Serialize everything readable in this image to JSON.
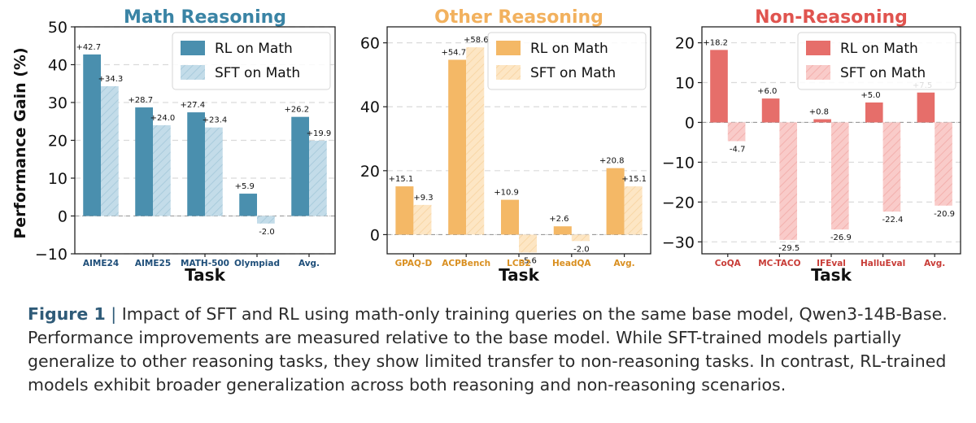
{
  "figure_caption": {
    "label": "Figure 1",
    "separator": "|",
    "text": "Impact of SFT and RL using math-only training queries on the same base model, Qwen3-14B-Base. Performance improvements are measured relative to the base model. While SFT-trained models partially generalize to other reasoning tasks, they show limited transfer to non-reasoning tasks. In contrast, RL-trained models exhibit broader generalization across both reasoning and non-reasoning scenarios."
  },
  "shared_ylabel": "Performance Gain (%)",
  "chart_data": [
    {
      "type": "bar",
      "title": "Math Reasoning",
      "title_color": "#3a84a5",
      "xlabel": "Task",
      "tick_label_color": "#1e4e79",
      "categories": [
        "AIME24",
        "AIME25",
        "MATH-500",
        "Olympiad",
        "Avg."
      ],
      "ylim": [
        -10,
        50
      ],
      "yticks": [
        -10,
        0,
        10,
        20,
        30,
        40,
        50
      ],
      "ytick_labels": [
        "−10",
        "0",
        "10",
        "20",
        "30",
        "40",
        "50"
      ],
      "legend_position": "top-right",
      "grid": "horizontal dashed",
      "series": [
        {
          "name": "RL on Math",
          "style": "solid",
          "color": "#4a8fae",
          "values": [
            42.7,
            28.7,
            27.4,
            5.9,
            26.2
          ],
          "labels": [
            "+42.7",
            "+28.7",
            "+27.4",
            "+5.9",
            "+26.2"
          ]
        },
        {
          "name": "SFT on Math",
          "style": "hatched",
          "color": "#bcd8e6",
          "values": [
            34.3,
            24.0,
            23.4,
            -2.0,
            19.9
          ],
          "labels": [
            "+34.3",
            "+24.0",
            "+23.4",
            "-2.0",
            "+19.9"
          ]
        }
      ]
    },
    {
      "type": "bar",
      "title": "Other Reasoning",
      "title_color": "#f2b15e",
      "xlabel": "Task",
      "tick_label_color": "#d98f20",
      "categories": [
        "GPAQ-D",
        "ACPBench",
        "LCB2",
        "HeadQA",
        "Avg."
      ],
      "ylim": [
        -6,
        65
      ],
      "yticks": [
        0,
        20,
        40,
        60
      ],
      "ytick_labels": [
        "0",
        "20",
        "40",
        "60"
      ],
      "legend_position": "top-right",
      "grid": "horizontal dashed",
      "series": [
        {
          "name": "RL on Math",
          "style": "solid",
          "color": "#f4b866",
          "values": [
            15.1,
            54.7,
            10.9,
            2.6,
            20.8
          ],
          "labels": [
            "+15.1",
            "+54.7",
            "+10.9",
            "+2.6",
            "+20.8"
          ]
        },
        {
          "name": "SFT on Math",
          "style": "hatched",
          "color": "#fbe3bf",
          "values": [
            9.3,
            58.6,
            -5.6,
            -2.0,
            15.1
          ],
          "labels": [
            "+9.3",
            "+58.6",
            "-5.6",
            "-2.0",
            "+15.1"
          ]
        }
      ]
    },
    {
      "type": "bar",
      "title": "Non-Reasoning",
      "title_color": "#e0544f",
      "xlabel": "Task",
      "tick_label_color": "#c83c37",
      "categories": [
        "CoQA",
        "MC-TACO",
        "IFEval",
        "HalluEval",
        "Avg."
      ],
      "ylim": [
        -33,
        24
      ],
      "yticks": [
        -30,
        -20,
        -10,
        0,
        10,
        20
      ],
      "ytick_labels": [
        "−30",
        "−20",
        "−10",
        "0",
        "10",
        "20"
      ],
      "legend_position": "top-right",
      "grid": "horizontal dashed",
      "series": [
        {
          "name": "RL on Math",
          "style": "solid",
          "color": "#e66e6a",
          "values": [
            18.2,
            6.0,
            0.8,
            5.0,
            7.5
          ],
          "labels": [
            "+18.2",
            "+6.0",
            "+0.8",
            "+5.0",
            "+7.5"
          ]
        },
        {
          "name": "SFT on Math",
          "style": "hatched",
          "color": "#f6c3c1",
          "values": [
            -4.7,
            -29.5,
            -26.9,
            -22.4,
            -20.9
          ],
          "labels": [
            "-4.7",
            "-29.5",
            "-26.9",
            "-22.4",
            "-20.9"
          ]
        }
      ]
    }
  ]
}
